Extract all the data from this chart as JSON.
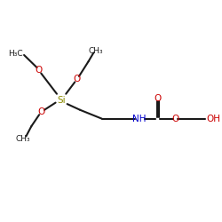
{
  "bg_color": "#ffffff",
  "bond_color": "#1a1a1a",
  "si_color": "#8b8b00",
  "o_color": "#cc0000",
  "n_color": "#0000cc",
  "figsize": [
    2.5,
    2.5
  ],
  "dpi": 100,
  "xlim": [
    0,
    10
  ],
  "ylim": [
    0,
    10
  ]
}
